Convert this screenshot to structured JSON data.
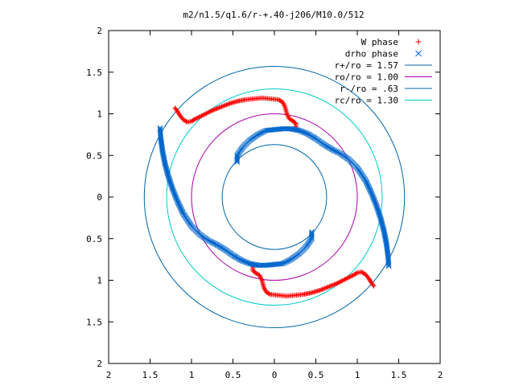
{
  "chart_data": {
    "type": "scatter",
    "title": "m2/n1.5/q1.6/r-+.40-j206/M10.0/512",
    "xlabel": "",
    "ylabel": "",
    "xlim": [
      -2,
      2
    ],
    "ylim": [
      -2,
      2
    ],
    "grid": false,
    "legend_position": "top-right",
    "x_ticks": [
      {
        "value": -2,
        "label": "2"
      },
      {
        "value": -1.5,
        "label": "1.5"
      },
      {
        "value": -1,
        "label": "1"
      },
      {
        "value": -0.5,
        "label": "0.5"
      },
      {
        "value": 0,
        "label": "0"
      },
      {
        "value": 0.5,
        "label": "0.5"
      },
      {
        "value": 1,
        "label": "1"
      },
      {
        "value": 1.5,
        "label": "1.5"
      },
      {
        "value": 2,
        "label": "2"
      }
    ],
    "y_ticks": [
      {
        "value": 2,
        "label": "2"
      },
      {
        "value": 1.5,
        "label": "1.5"
      },
      {
        "value": 1,
        "label": "1"
      },
      {
        "value": 0.5,
        "label": "0.5"
      },
      {
        "value": 0,
        "label": "0"
      },
      {
        "value": -0.5,
        "label": "0.5"
      },
      {
        "value": -1,
        "label": "1"
      },
      {
        "value": -1.5,
        "label": "1.5"
      },
      {
        "value": -2,
        "label": "2"
      }
    ],
    "series": [
      {
        "name": "W phase",
        "marker": "plus",
        "color": "#ff0000",
        "points": [
          [
            -1.2,
            1.07
          ],
          [
            -1.17,
            1.03
          ],
          [
            -1.14,
            0.98
          ],
          [
            -1.1,
            0.93
          ],
          [
            -1.05,
            0.9
          ],
          [
            -1.0,
            0.91
          ],
          [
            -0.95,
            0.94
          ],
          [
            -0.85,
            0.99
          ],
          [
            -0.75,
            1.04
          ],
          [
            -0.65,
            1.08
          ],
          [
            -0.55,
            1.12
          ],
          [
            -0.45,
            1.15
          ],
          [
            -0.35,
            1.17
          ],
          [
            -0.25,
            1.18
          ],
          [
            -0.15,
            1.19
          ],
          [
            -0.05,
            1.18
          ],
          [
            0.05,
            1.17
          ],
          [
            0.1,
            1.14
          ],
          [
            0.13,
            1.08
          ],
          [
            0.15,
            1.0
          ],
          [
            0.18,
            0.94
          ],
          [
            0.23,
            0.91
          ],
          [
            0.26,
            0.88
          ],
          [
            0.26,
            0.83
          ],
          [
            1.2,
            -1.07
          ],
          [
            1.17,
            -1.03
          ],
          [
            1.14,
            -0.98
          ],
          [
            1.1,
            -0.93
          ],
          [
            1.05,
            -0.9
          ],
          [
            1.0,
            -0.91
          ],
          [
            0.95,
            -0.94
          ],
          [
            0.85,
            -0.99
          ],
          [
            0.75,
            -1.04
          ],
          [
            0.65,
            -1.08
          ],
          [
            0.55,
            -1.12
          ],
          [
            0.45,
            -1.15
          ],
          [
            0.35,
            -1.17
          ],
          [
            0.25,
            -1.18
          ],
          [
            0.15,
            -1.19
          ],
          [
            0.05,
            -1.18
          ],
          [
            -0.05,
            -1.17
          ],
          [
            -0.1,
            -1.14
          ],
          [
            -0.13,
            -1.08
          ],
          [
            -0.15,
            -1.0
          ],
          [
            -0.18,
            -0.94
          ],
          [
            -0.23,
            -0.91
          ],
          [
            -0.26,
            -0.88
          ],
          [
            -0.26,
            -0.83
          ]
        ]
      },
      {
        "name": "drho phase",
        "marker": "cross",
        "color": "#0066cc",
        "points": [
          [
            -1.38,
            0.83
          ],
          [
            -1.37,
            0.7
          ],
          [
            -1.35,
            0.55
          ],
          [
            -1.32,
            0.4
          ],
          [
            -1.28,
            0.25
          ],
          [
            -1.23,
            0.1
          ],
          [
            -1.17,
            -0.05
          ],
          [
            -1.1,
            -0.2
          ],
          [
            -1.0,
            -0.35
          ],
          [
            -0.9,
            -0.45
          ],
          [
            -0.8,
            -0.52
          ],
          [
            -0.7,
            -0.57
          ],
          [
            -0.6,
            -0.63
          ],
          [
            -0.5,
            -0.7
          ],
          [
            -0.4,
            -0.76
          ],
          [
            -0.3,
            -0.8
          ],
          [
            -0.2,
            -0.82
          ],
          [
            -0.1,
            -0.82
          ],
          [
            0.0,
            -0.81
          ],
          [
            0.1,
            -0.8
          ],
          [
            0.2,
            -0.75
          ],
          [
            0.3,
            -0.68
          ],
          [
            0.38,
            -0.6
          ],
          [
            0.45,
            -0.5
          ],
          [
            0.45,
            -0.42
          ],
          [
            1.38,
            -0.83
          ],
          [
            1.37,
            -0.7
          ],
          [
            1.35,
            -0.55
          ],
          [
            1.32,
            -0.4
          ],
          [
            1.28,
            -0.25
          ],
          [
            1.23,
            -0.1
          ],
          [
            1.17,
            0.05
          ],
          [
            1.1,
            0.2
          ],
          [
            1.0,
            0.35
          ],
          [
            0.9,
            0.45
          ],
          [
            0.8,
            0.52
          ],
          [
            0.7,
            0.57
          ],
          [
            0.6,
            0.63
          ],
          [
            0.5,
            0.7
          ],
          [
            0.4,
            0.76
          ],
          [
            0.3,
            0.8
          ],
          [
            0.2,
            0.82
          ],
          [
            0.1,
            0.82
          ],
          [
            0.0,
            0.81
          ],
          [
            -0.1,
            0.8
          ],
          [
            -0.2,
            0.75
          ],
          [
            -0.3,
            0.68
          ],
          [
            -0.38,
            0.6
          ],
          [
            -0.45,
            0.5
          ],
          [
            -0.45,
            0.42
          ]
        ]
      },
      {
        "name": "r+/ro = 1.57",
        "type": "circle",
        "radius": 1.57,
        "color": "#0066aa"
      },
      {
        "name": "ro/ro = 1.00",
        "type": "circle",
        "radius": 1.0,
        "color": "#aa00aa"
      },
      {
        "name": "r-/ro = .63",
        "type": "circle",
        "radius": 0.63,
        "color": "#0066aa"
      },
      {
        "name": "rc/ro = 1.30",
        "type": "circle",
        "radius": 1.3,
        "color": "#00cccc"
      }
    ]
  }
}
